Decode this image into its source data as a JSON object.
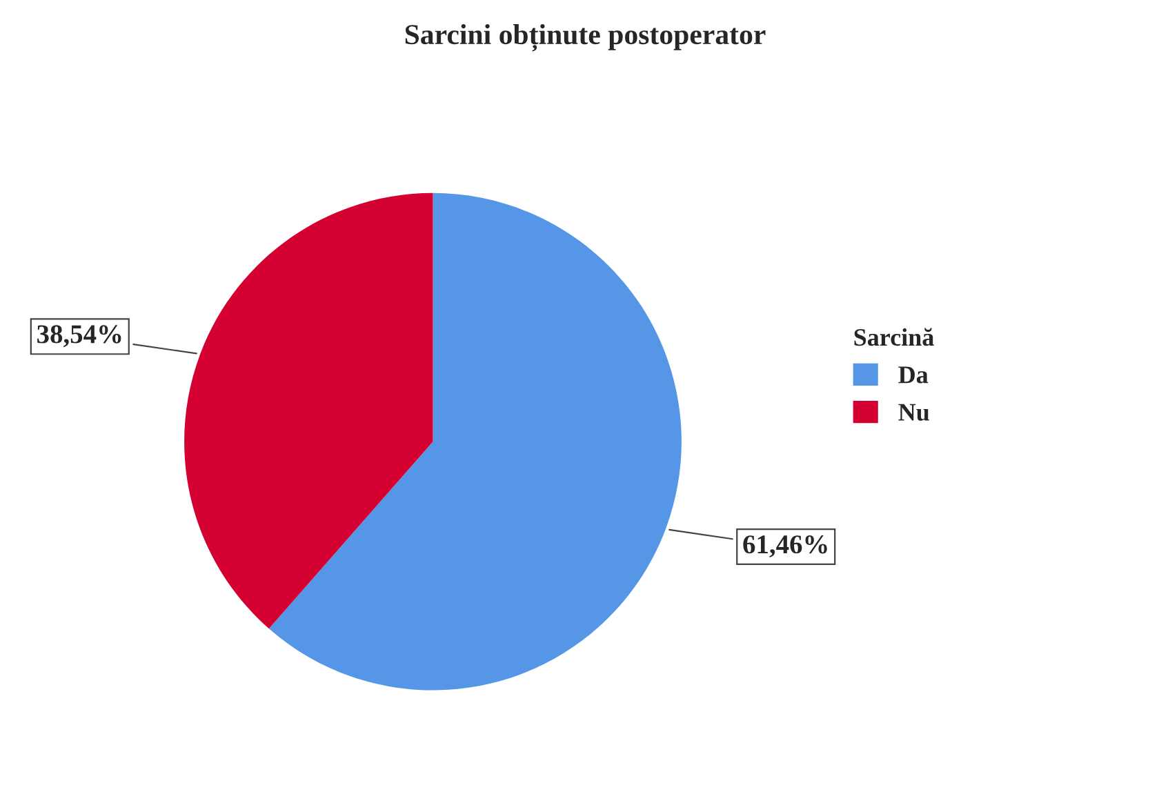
{
  "chart_data": {
    "type": "pie",
    "title": "Sarcini obținute postoperator",
    "legend_title": "Sarcină",
    "categories": [
      "Da",
      "Nu"
    ],
    "values": [
      61.46,
      38.54
    ],
    "colors": [
      "#5596e6",
      "#d50032"
    ],
    "value_labels": [
      "61,46%",
      "38,54%"
    ],
    "legend": "right"
  }
}
